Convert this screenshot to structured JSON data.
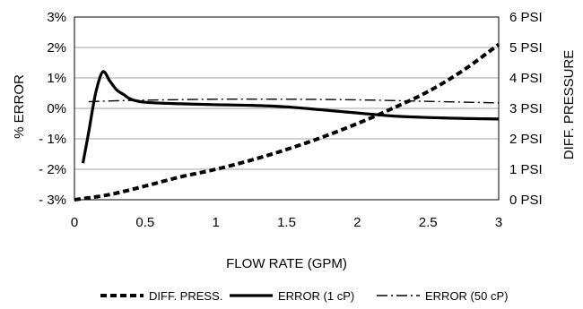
{
  "chart_data": {
    "type": "line",
    "title": "",
    "xlabel": "FLOW RATE (GPM)",
    "ylabel_left": "% ERROR",
    "ylabel_right": "DIFF. PRESSURE",
    "xlim": [
      0,
      3
    ],
    "ylim_left": [
      -3,
      3
    ],
    "ylim_right": [
      0,
      6
    ],
    "x_ticks": [
      "0",
      "0.5",
      "1",
      "1.5",
      "2",
      "2.5",
      "3"
    ],
    "y_left_ticks": [
      "3%",
      "2%",
      "1%",
      "0%",
      "- 1%",
      "- 2%",
      "- 3%"
    ],
    "y_right_ticks": [
      "6 PSI",
      "5 PSI",
      "4 PSI",
      "3 PSI",
      "2 PSI",
      "1 PSI",
      "0 PSI"
    ],
    "grid": true,
    "legend_position": "bottom",
    "series": [
      {
        "name": "DIFF. PRESS.",
        "axis": "right",
        "style": "dashed",
        "x": [
          0,
          0.25,
          0.5,
          0.75,
          1.0,
          1.25,
          1.5,
          1.75,
          2.0,
          2.25,
          2.5,
          2.75,
          3.0
        ],
        "y": [
          0.0,
          0.17,
          0.45,
          0.75,
          1.0,
          1.3,
          1.65,
          2.05,
          2.5,
          3.0,
          3.55,
          4.25,
          5.1
        ]
      },
      {
        "name": "ERROR (1 cP)",
        "axis": "left",
        "style": "solid-thick",
        "x": [
          0.06,
          0.1,
          0.15,
          0.2,
          0.25,
          0.3,
          0.35,
          0.4,
          0.5,
          0.75,
          1.0,
          1.25,
          1.5,
          1.75,
          2.0,
          2.25,
          2.5,
          2.75,
          3.0
        ],
        "y": [
          -1.8,
          -0.8,
          0.5,
          1.2,
          0.9,
          0.6,
          0.45,
          0.3,
          0.2,
          0.15,
          0.12,
          0.1,
          0.05,
          -0.05,
          -0.15,
          -0.25,
          -0.3,
          -0.33,
          -0.35
        ]
      },
      {
        "name": "ERROR (50 cP)",
        "axis": "left",
        "style": "dash-dot",
        "x": [
          0.1,
          0.3,
          0.5,
          1.0,
          1.5,
          2.0,
          2.5,
          3.0
        ],
        "y": [
          0.22,
          0.25,
          0.27,
          0.3,
          0.3,
          0.28,
          0.23,
          0.18
        ]
      }
    ]
  }
}
